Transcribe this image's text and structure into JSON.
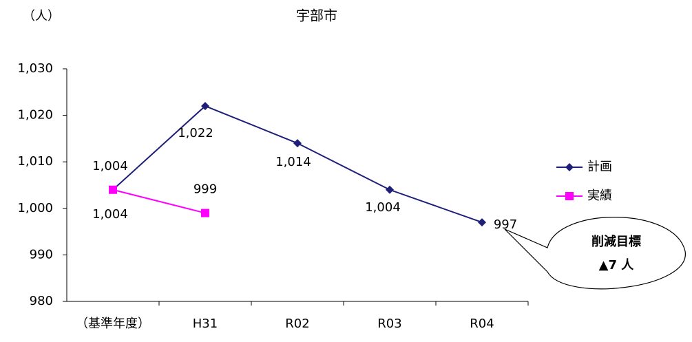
{
  "chart_data": {
    "type": "line",
    "title": "宇部市",
    "y_label": "（人）",
    "categories": [
      "（基準年度）",
      "H31",
      "R02",
      "R03",
      "R04"
    ],
    "series": [
      {
        "name": "計画",
        "color": "#1f1f7a",
        "marker": "diamond",
        "values": [
          1004,
          1022,
          1014,
          1004,
          997
        ],
        "value_labels": [
          "1,004",
          "1,022",
          "1,014",
          "1,004",
          "997"
        ]
      },
      {
        "name": "実績",
        "color": "#ff00ff",
        "marker": "square",
        "values": [
          1004,
          999,
          null,
          null,
          null
        ],
        "value_labels": [
          "1,004",
          "999",
          null,
          null,
          null
        ]
      }
    ],
    "ylim": [
      980,
      1030
    ],
    "yticks": [
      980,
      990,
      {
        "value": 1000,
        "label": "1,000"
      },
      {
        "value": 1010,
        "label": "1,010"
      },
      {
        "value": 1020,
        "label": "1,020"
      },
      {
        "value": 1030,
        "label": "1,030"
      }
    ],
    "grid": false,
    "legend": "right",
    "annotations": [
      "削減目標",
      "▲7 人"
    ]
  }
}
